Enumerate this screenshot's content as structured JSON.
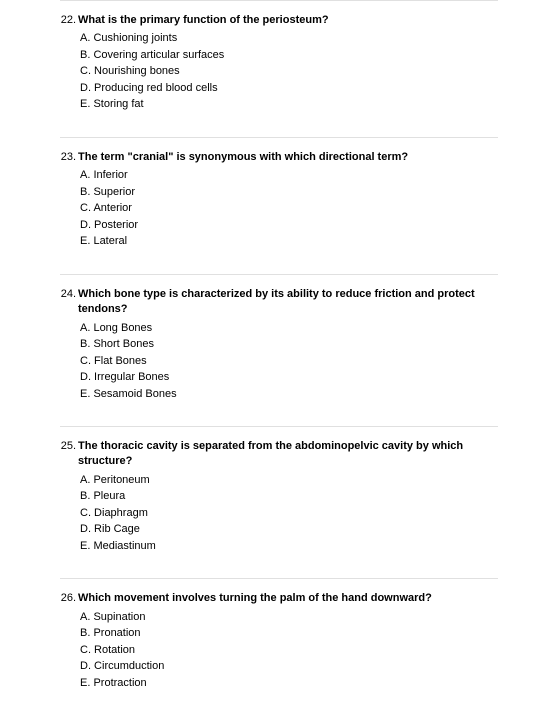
{
  "questions": [
    {
      "number": "22.",
      "text": "What is the primary function of the periosteum?",
      "options": [
        "A. Cushioning joints",
        "B. Covering articular surfaces",
        "C. Nourishing bones",
        "D. Producing red blood cells",
        "E. Storing fat"
      ]
    },
    {
      "number": "23.",
      "text": "The term \"cranial\" is synonymous with which directional term?",
      "options": [
        "A. Inferior",
        "B. Superior",
        "C. Anterior",
        "D. Posterior",
        "E. Lateral"
      ]
    },
    {
      "number": "24.",
      "text": "Which bone type is characterized by its ability to reduce friction and protect tendons?",
      "options": [
        "A. Long Bones",
        "B. Short Bones",
        "C. Flat Bones",
        "D. Irregular Bones",
        "E. Sesamoid Bones"
      ]
    },
    {
      "number": "25.",
      "text": "The thoracic cavity is separated from the abdominopelvic cavity by which structure?",
      "options": [
        "A. Peritoneum",
        "B. Pleura",
        "C. Diaphragm",
        "D. Rib Cage",
        "E. Mediastinum"
      ]
    },
    {
      "number": "26.",
      "text": "Which movement involves turning the palm of the hand downward?",
      "options": [
        "A. Supination",
        "B. Pronation",
        "C. Rotation",
        "D. Circumduction",
        "E. Protraction"
      ]
    }
  ]
}
